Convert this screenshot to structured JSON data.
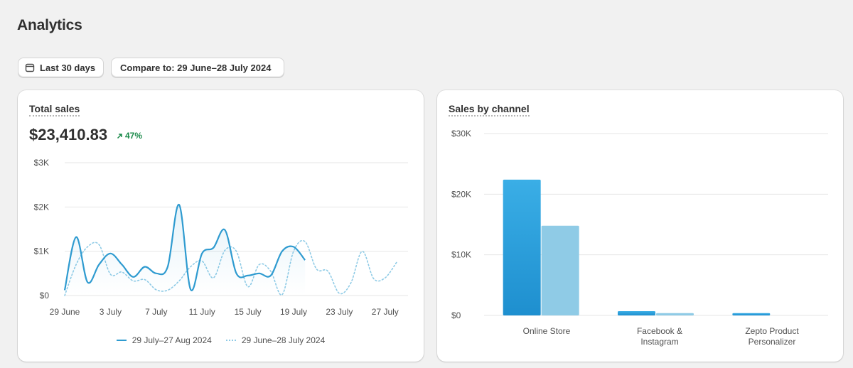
{
  "page": {
    "title": "Analytics"
  },
  "filters": {
    "date_range_label": "Last 30 days",
    "compare_label": "Compare to: 29 June–28 July 2024"
  },
  "colors": {
    "accent": "#2f9bd0",
    "comparison": "#8fcbe6",
    "positive": "#1a8a4a"
  },
  "icons": {
    "calendar": "calendar-icon",
    "trend": "arrow-up-right-icon"
  },
  "total_sales": {
    "title": "Total sales",
    "value": "$23,410.83",
    "change": "47%"
  },
  "sales_by_channel": {
    "title": "Sales by channel"
  },
  "chart_data": [
    {
      "type": "line",
      "ylim": [
        0,
        3000
      ],
      "y_ticks": [
        0,
        1000,
        2000,
        3000
      ],
      "y_tick_labels": [
        "$0",
        "$1K",
        "$2K",
        "$3K"
      ],
      "x_range": [
        0,
        30
      ],
      "x_ticks": [
        0,
        4,
        8,
        12,
        16,
        20,
        24,
        28
      ],
      "x_tick_labels": [
        "29 June",
        "3 July",
        "7 July",
        "11 July",
        "15 July",
        "19 July",
        "23 July",
        "27 July"
      ],
      "grid": true,
      "legend": "bottom",
      "series": [
        {
          "name": "29 July–27 Aug 2024",
          "style": "solid",
          "values": [
            120,
            1320,
            300,
            700,
            950,
            700,
            420,
            650,
            500,
            650,
            2050,
            140,
            950,
            1080,
            1480,
            500,
            450,
            500,
            450,
            1000,
            1100,
            800
          ]
        },
        {
          "name": "29 June–28 July 2024",
          "style": "dotted",
          "values": [
            0,
            700,
            1100,
            1150,
            480,
            530,
            330,
            360,
            130,
            120,
            330,
            650,
            780,
            400,
            1020,
            1000,
            200,
            700,
            550,
            20,
            1000,
            1220,
            600,
            550,
            50,
            280,
            1000,
            380,
            400,
            750
          ]
        }
      ]
    },
    {
      "type": "bar",
      "ylim": [
        0,
        30000
      ],
      "y_ticks": [
        0,
        10000,
        20000,
        30000
      ],
      "y_tick_labels": [
        "$0",
        "$10K",
        "$20K",
        "$30K"
      ],
      "categories": [
        "Online Store",
        "Facebook & Instagram",
        "Zepto Product Personalizer"
      ],
      "grid": true,
      "series": [
        {
          "name": "29 July–27 Aug 2024",
          "values": [
            22400,
            700,
            380
          ]
        },
        {
          "name": "29 June–28 July 2024",
          "values": [
            14800,
            380,
            0
          ]
        }
      ]
    }
  ]
}
